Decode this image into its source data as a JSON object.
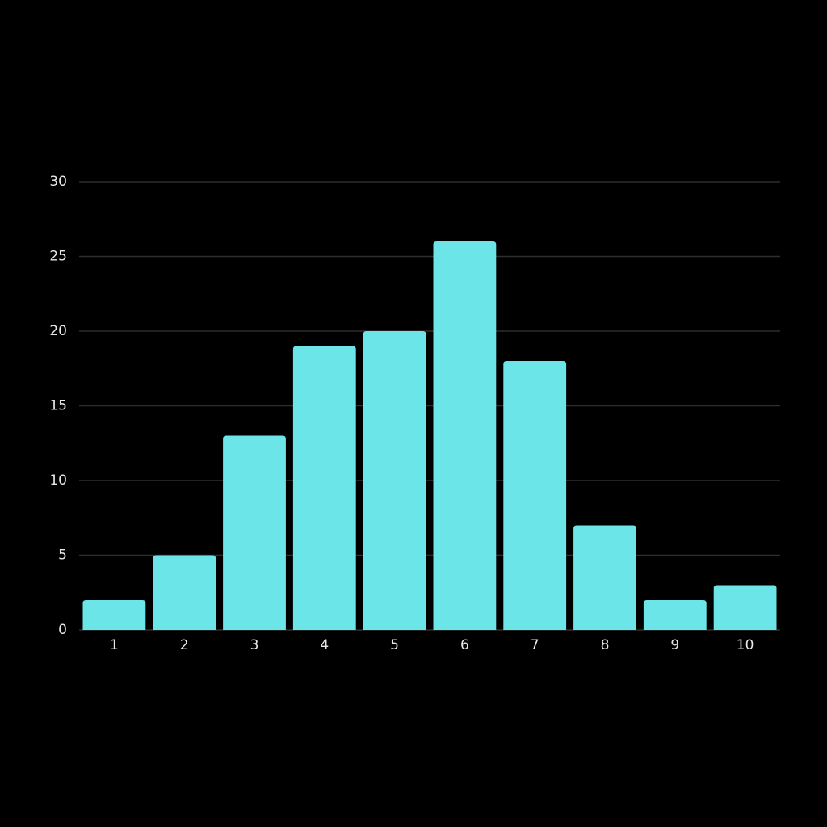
{
  "chart_data": {
    "type": "bar",
    "categories": [
      "1",
      "2",
      "3",
      "4",
      "5",
      "6",
      "7",
      "8",
      "9",
      "10"
    ],
    "values": [
      2,
      5,
      13,
      19,
      20,
      26,
      18,
      7,
      2,
      3
    ],
    "color": "#6ce5e8",
    "ylim": [
      0,
      30
    ],
    "yticks": [
      0,
      5,
      10,
      15,
      20,
      25,
      30
    ],
    "grid": true
  }
}
